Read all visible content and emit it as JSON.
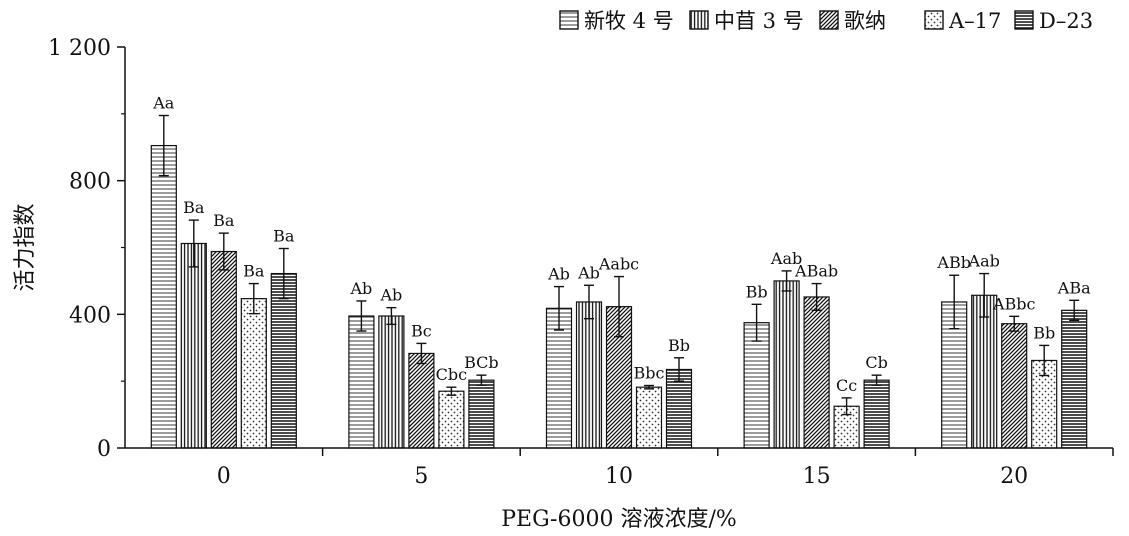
{
  "chart_data": {
    "type": "bar",
    "xlabel": "PEG-6000 溶液浓度/%",
    "ylabel": "活力指数",
    "ylim": [
      0,
      1200
    ],
    "yticks": [
      {
        "value": 0,
        "label": "0"
      },
      {
        "value": 400,
        "label": "400"
      },
      {
        "value": 800,
        "label": "800"
      },
      {
        "value": 1200,
        "label": "1 200"
      }
    ],
    "categories": [
      "0",
      "5",
      "10",
      "15",
      "20"
    ],
    "legend_position": "top-right",
    "series": [
      {
        "name": "新牧 4 号",
        "pattern": "hlines-sparse",
        "values": [
          905,
          395,
          418,
          375,
          437
        ],
        "errors": [
          90,
          45,
          65,
          55,
          80
        ],
        "labels": [
          "Aa",
          "Ab",
          "Ab",
          "Bb",
          "ABb"
        ]
      },
      {
        "name": "中苜 3 号",
        "pattern": "vlines",
        "values": [
          612,
          395,
          437,
          500,
          457
        ],
        "errors": [
          70,
          25,
          50,
          30,
          65
        ],
        "labels": [
          "Ba",
          "Ab",
          "Ab",
          "Aab",
          "Aab"
        ]
      },
      {
        "name": "歌纳",
        "pattern": "diagonal",
        "values": [
          588,
          283,
          423,
          452,
          372
        ],
        "errors": [
          55,
          30,
          90,
          40,
          22
        ],
        "labels": [
          "Ba",
          "Bc",
          "Aabc",
          "ABab",
          "ABbc"
        ]
      },
      {
        "name": "A–17",
        "pattern": "dots",
        "values": [
          447,
          170,
          182,
          125,
          262
        ],
        "errors": [
          45,
          12,
          5,
          25,
          45
        ],
        "labels": [
          "Ba",
          "Cbc",
          "Bbc",
          "Cc",
          "Bb"
        ]
      },
      {
        "name": "D–23",
        "pattern": "hlines-dense",
        "values": [
          522,
          203,
          235,
          203,
          412
        ],
        "errors": [
          75,
          15,
          35,
          15,
          30
        ],
        "labels": [
          "Ba",
          "BCb",
          "Bb",
          "Cb",
          "ABa"
        ]
      }
    ]
  }
}
